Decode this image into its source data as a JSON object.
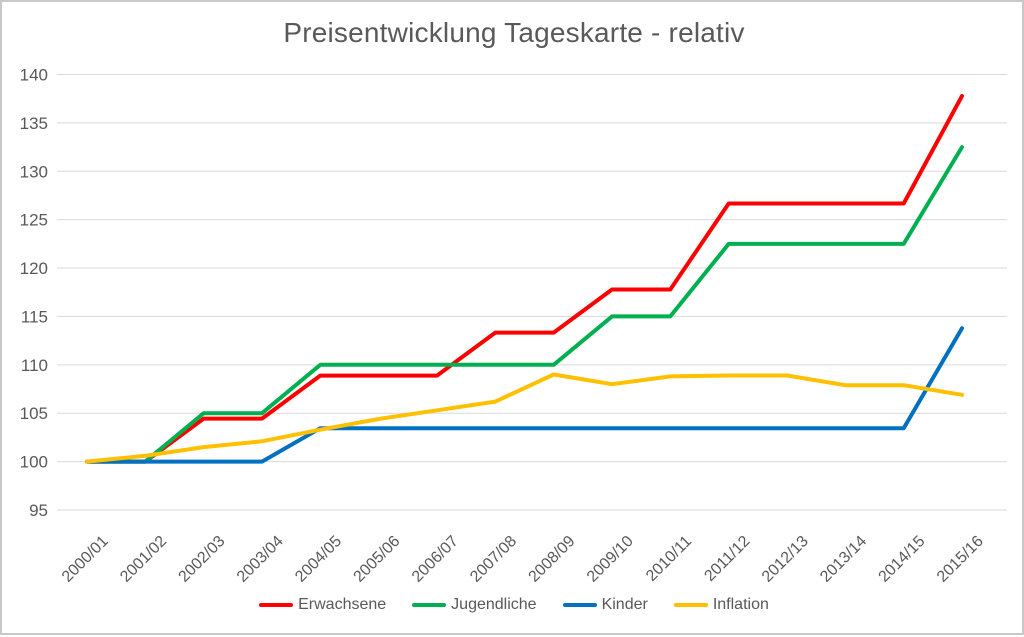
{
  "frame": {
    "border_color": "#c9c9c9",
    "background": "#ffffff"
  },
  "chart": {
    "title": "Preisentwicklung Tageskarte - relativ",
    "text_color": "#595959",
    "gridline_color": "#d9d9d9"
  },
  "chart_data": {
    "type": "line",
    "title": "Preisentwicklung Tageskarte - relativ",
    "categories": [
      "2000/01",
      "2001/02",
      "2002/03",
      "2003/04",
      "2004/05",
      "2005/06",
      "2006/07",
      "2007/08",
      "2008/09",
      "2009/10",
      "2010/11",
      "2011/12",
      "2012/13",
      "2013/14",
      "2014/15",
      "2015/16"
    ],
    "series": [
      {
        "name": "Erwachsene",
        "color": "#ff0000",
        "values": [
          100,
          100,
          104.44,
          104.44,
          108.89,
          108.89,
          108.89,
          113.33,
          113.33,
          117.78,
          117.78,
          126.67,
          126.67,
          126.67,
          126.67,
          137.78
        ]
      },
      {
        "name": "Jugendliche",
        "color": "#00b050",
        "values": [
          100,
          100,
          105,
          105,
          110,
          110,
          110,
          110,
          110,
          115,
          115,
          122.5,
          122.5,
          122.5,
          122.5,
          132.5
        ]
      },
      {
        "name": "Kinder",
        "color": "#0070c0",
        "values": [
          100,
          100,
          100,
          100,
          103.45,
          103.45,
          103.45,
          103.45,
          103.45,
          103.45,
          103.45,
          103.45,
          103.45,
          103.45,
          103.45,
          113.79
        ]
      },
      {
        "name": "Inflation",
        "color": "#ffc000",
        "values": [
          100,
          100.6,
          101.5,
          102.1,
          103.3,
          104.4,
          105.3,
          106.2,
          109,
          108,
          108.8,
          108.9,
          108.9,
          107.9,
          107.9,
          106.9
        ]
      }
    ],
    "xlabel": "",
    "ylabel": "",
    "ylim": [
      95,
      140
    ],
    "ytick_step": 5,
    "grid": true,
    "legend_position": "bottom"
  }
}
